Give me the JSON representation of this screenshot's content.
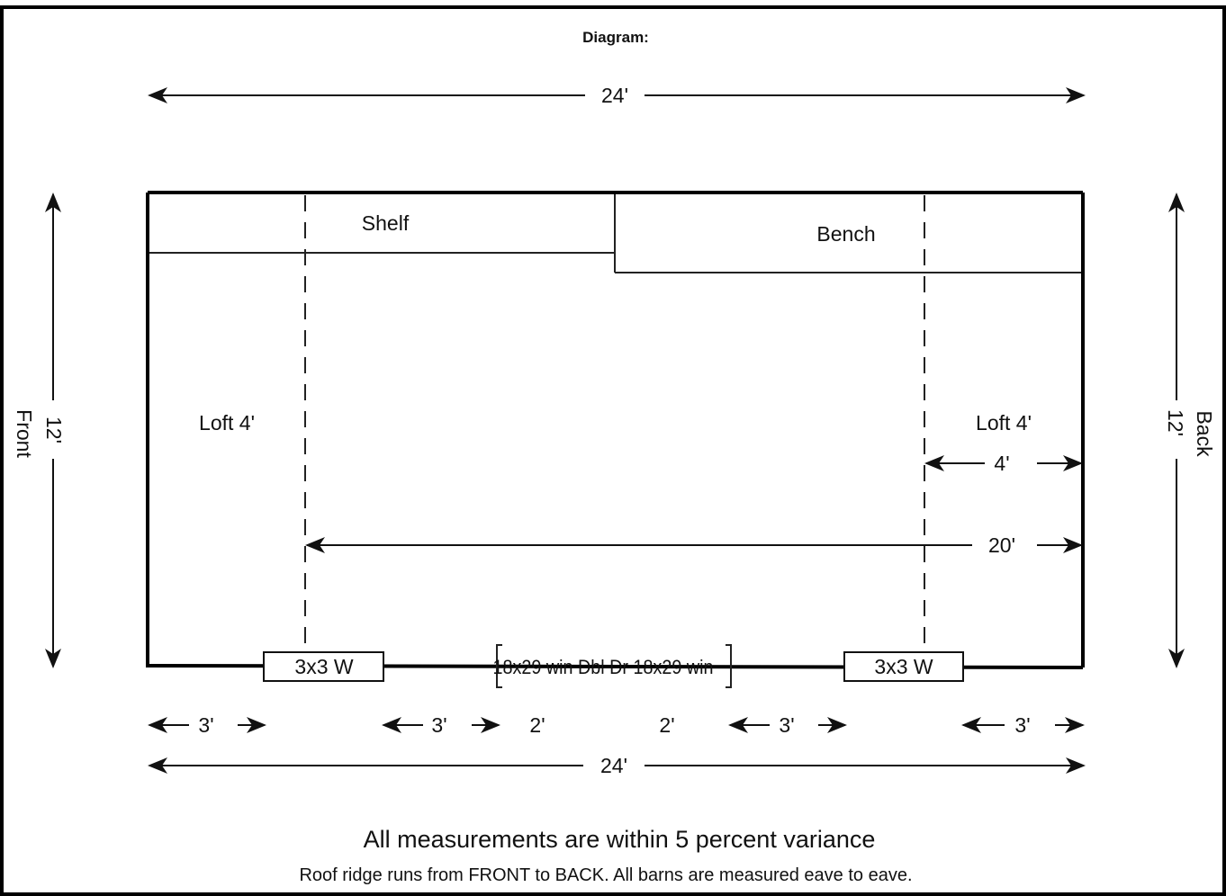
{
  "title": "Diagram:",
  "top_dimension": "24'",
  "bottom_dimension": "24'",
  "left_dimension": "12'",
  "right_dimension": "12'",
  "left_side_label": "Front",
  "right_side_label": "Back",
  "rooms": {
    "shelf": "Shelf",
    "bench": "Bench",
    "loft_left": "Loft 4'",
    "loft_right": "Loft 4'"
  },
  "inner_dims": {
    "four": "4'",
    "twenty": "20'"
  },
  "openings": {
    "window_left": "3x3 W",
    "window_right": "3x3 W",
    "door_text": "18x29 win Dbl Dr 18x29 win"
  },
  "segment_dims": [
    "3'",
    "3'",
    "2'",
    "2'",
    "3'",
    "3'"
  ],
  "notes": {
    "variance": "All measurements are within 5 percent variance",
    "ridge": "Roof ridge runs from FRONT to BACK. All barns are measured eave to eave."
  }
}
